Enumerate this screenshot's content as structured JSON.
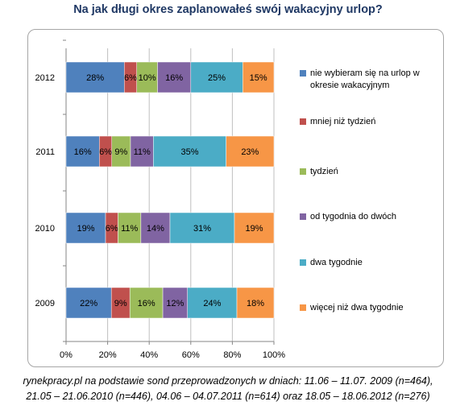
{
  "chart_data": {
    "type": "bar",
    "orientation": "horizontal",
    "stacked": "percent",
    "title": "Na jak długi okres zaplanowałeś swój wakacyjny urlop?",
    "categories": [
      "2012",
      "2011",
      "2010",
      "2009"
    ],
    "series": [
      {
        "name": "nie wybieram się na urlop w okresie wakacyjnym",
        "color": "#4f81bd",
        "values": [
          28,
          16,
          19,
          22
        ]
      },
      {
        "name": "mniej niż tydzień",
        "color": "#c0504d",
        "values": [
          6,
          6,
          6,
          9
        ]
      },
      {
        "name": "tydzień",
        "color": "#9bbb59",
        "values": [
          10,
          9,
          11,
          16
        ]
      },
      {
        "name": "od tygodnia do dwóch",
        "color": "#8064a2",
        "values": [
          16,
          11,
          14,
          12
        ]
      },
      {
        "name": "dwa tygodnie",
        "color": "#4bacc6",
        "values": [
          25,
          35,
          31,
          24
        ]
      },
      {
        "name": "więcej niż dwa tygodnie",
        "color": "#f79646",
        "values": [
          15,
          23,
          19,
          18
        ]
      }
    ],
    "value_suffix": "%",
    "xlim": [
      0,
      100
    ],
    "xticks": [
      "0%",
      "20%",
      "40%",
      "60%",
      "80%",
      "100%"
    ],
    "grid": true,
    "legend_position": "right"
  },
  "source_note": [
    "rynekpracy.pl na podstawie sond przeprowadzonych w dniach: 11.06 – 11.07. 2009 (n=464),",
    "21.05 – 21.06.2010  (n=446), 04.06 – 04.07.2011  (n=614) oraz 18.05 – 18.06.2012  (n=276)"
  ]
}
